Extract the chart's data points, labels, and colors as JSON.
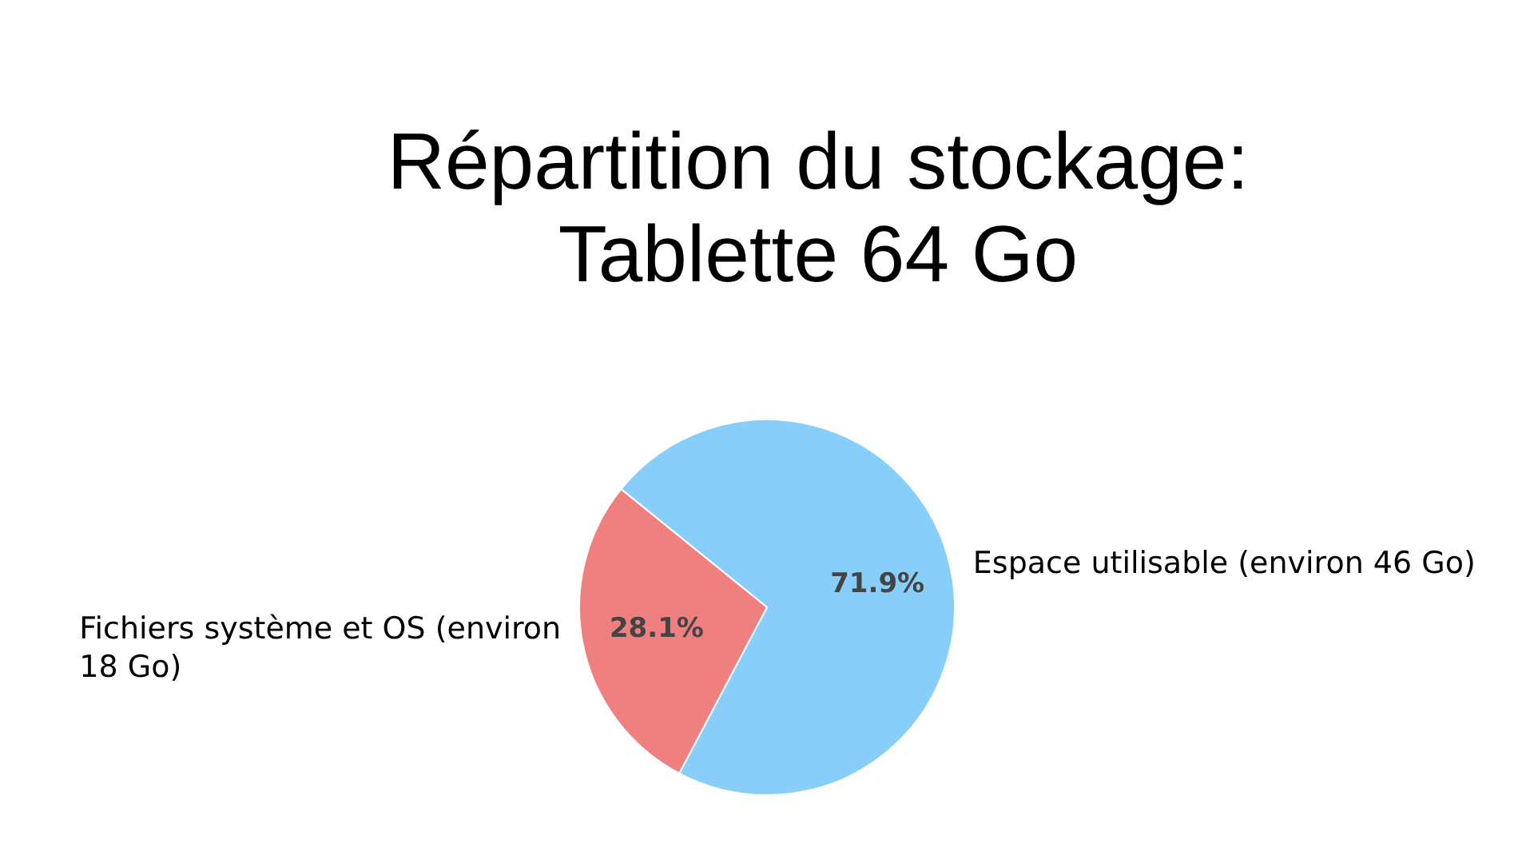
{
  "chart_data": {
    "type": "pie",
    "title": "Répartition du stockage: Tablette 64 Go",
    "categories": [
      "Espace utilisable (environ 46 Go)",
      "Fichiers système et OS (environ 18 Go)"
    ],
    "values": [
      71.9,
      28.1
    ],
    "value_labels": [
      "71.9%",
      "28.1%"
    ],
    "colors": [
      "#87cefa",
      "#f08080"
    ],
    "legend": false
  }
}
